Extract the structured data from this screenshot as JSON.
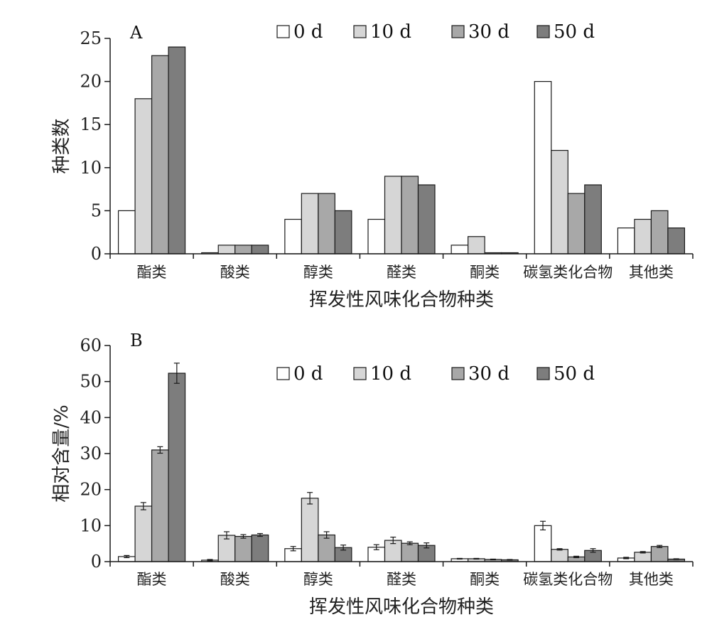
{
  "chart_data": [
    {
      "type": "bar",
      "panel_label": "A",
      "categories": [
        "酯类",
        "酸类",
        "醇类",
        "醛类",
        "酮类",
        "碳氢类化合物",
        "其他类"
      ],
      "series": [
        {
          "name": "0 d",
          "color": "#ffffff",
          "values": [
            5,
            0,
            4,
            4,
            1,
            20,
            3
          ]
        },
        {
          "name": "10 d",
          "color": "#d6d6d6",
          "values": [
            18,
            1,
            7,
            9,
            2,
            12,
            4
          ]
        },
        {
          "name": "30 d",
          "color": "#a8a8a8",
          "values": [
            23,
            1,
            7,
            9,
            0,
            7,
            5
          ]
        },
        {
          "name": "50 d",
          "color": "#7d7d7d",
          "values": [
            24,
            1,
            5,
            8,
            0,
            8,
            3
          ]
        }
      ],
      "xlabel": "挥发性风味化合物种类",
      "ylabel": "种类数",
      "ylim": [
        0,
        25
      ],
      "yticks": [
        "0",
        "5",
        "10",
        "15",
        "20",
        "25"
      ],
      "legend_position": "top",
      "grid": false
    },
    {
      "type": "bar",
      "panel_label": "B",
      "categories": [
        "酯类",
        "酸类",
        "醇类",
        "醛类",
        "酮类",
        "碳氢类化合物",
        "其他类"
      ],
      "series": [
        {
          "name": "0 d",
          "color": "#ffffff",
          "values": [
            1.4,
            0.4,
            3.6,
            4.0,
            0.8,
            10.0,
            1.0
          ],
          "errors": [
            0.3,
            0.2,
            0.6,
            0.7,
            0.1,
            1.2,
            0.2
          ]
        },
        {
          "name": "10 d",
          "color": "#d6d6d6",
          "values": [
            15.4,
            7.3,
            17.6,
            5.9,
            0.8,
            3.4,
            2.6
          ],
          "errors": [
            1.0,
            1.0,
            1.6,
            0.9,
            0.1,
            0.2,
            0.2
          ]
        },
        {
          "name": "30 d",
          "color": "#a8a8a8",
          "values": [
            31.0,
            7.0,
            7.4,
            5.1,
            0.6,
            1.3,
            4.2
          ],
          "errors": [
            0.9,
            0.5,
            0.9,
            0.4,
            0.1,
            0.2,
            0.3
          ]
        },
        {
          "name": "50 d",
          "color": "#7d7d7d",
          "values": [
            52.3,
            7.4,
            3.9,
            4.5,
            0.5,
            3.1,
            0.7
          ],
          "errors": [
            2.8,
            0.4,
            0.7,
            0.7,
            0.1,
            0.5,
            0.1
          ]
        }
      ],
      "xlabel": "挥发性风味化合物种类",
      "ylabel": "相对含量/%",
      "ylim": [
        0,
        60
      ],
      "yticks": [
        "0",
        "10",
        "20",
        "30",
        "40",
        "50",
        "60"
      ],
      "legend_position": "top",
      "grid": false
    }
  ]
}
